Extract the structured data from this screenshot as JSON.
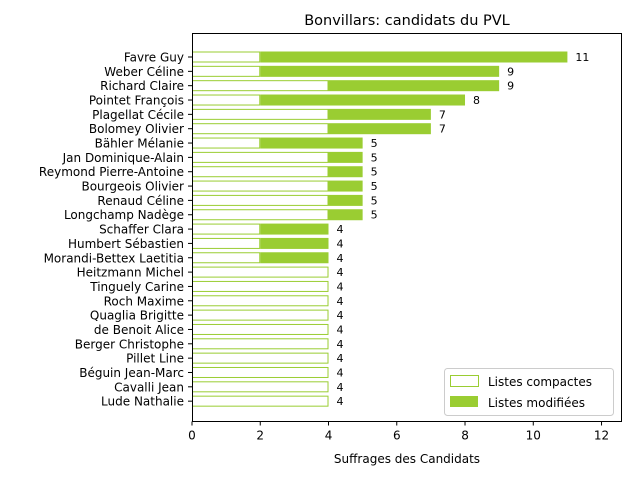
{
  "chart_data": {
    "type": "bar",
    "orientation": "horizontal",
    "stacked": true,
    "title": "Bonvillars: candidats du PVL",
    "xlabel": "Suffrages des Candidats",
    "ylabel": "",
    "xlim": [
      0,
      12.6
    ],
    "xticks": [
      0,
      2,
      4,
      6,
      8,
      10,
      12
    ],
    "grid": false,
    "legend_position": "lower-right",
    "categories": [
      "Favre Guy",
      "Weber Céline",
      "Richard Claire",
      "Pointet François",
      "Plagellat Cécile",
      "Bolomey Olivier",
      "Bähler Mélanie",
      "Jan Dominique-Alain",
      "Reymond Pierre-Antoine",
      "Bourgeois Olivier",
      "Renaud Céline",
      "Longchamp Nadège",
      "Schaffer Clara",
      "Humbert Sébastien",
      "Morandi-Bettex Laetitia",
      "Heitzmann Michel",
      "Tinguely Carine",
      "Roch Maxime",
      "Quaglia Brigitte",
      "de Benoit Alice",
      "Berger Christophe",
      "Pillet Line",
      "Béguin Jean-Marc",
      "Cavalli Jean",
      "Lude Nathalie"
    ],
    "series": [
      {
        "name": "Listes compactes",
        "color": "#9acd32",
        "style": "outline",
        "values": [
          2,
          2,
          4,
          2,
          4,
          4,
          2,
          4,
          4,
          4,
          4,
          4,
          2,
          2,
          2,
          4,
          4,
          4,
          4,
          4,
          4,
          4,
          4,
          4,
          4
        ]
      },
      {
        "name": "Listes modifiées",
        "color": "#9acd32",
        "style": "filled",
        "values": [
          9,
          7,
          5,
          6,
          3,
          3,
          3,
          1,
          1,
          1,
          1,
          1,
          2,
          2,
          2,
          0,
          0,
          0,
          0,
          0,
          0,
          0,
          0,
          0,
          0
        ]
      }
    ],
    "totals": [
      11,
      9,
      9,
      8,
      7,
      7,
      5,
      5,
      5,
      5,
      5,
      5,
      4,
      4,
      4,
      4,
      4,
      4,
      4,
      4,
      4,
      4,
      4,
      4,
      4
    ]
  }
}
